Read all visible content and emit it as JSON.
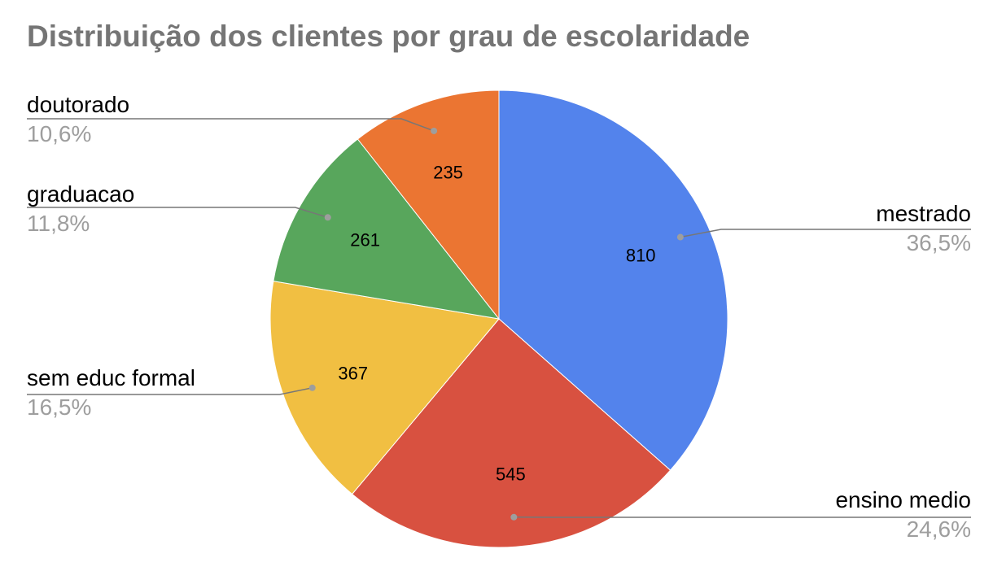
{
  "chart_data": {
    "type": "pie",
    "title": "Distribuição dos clientes por grau de escolaridade",
    "slices": [
      {
        "label": "mestrado",
        "value": 810,
        "percent": "36,5%",
        "color": "#5383EC"
      },
      {
        "label": "ensino medio",
        "value": 545,
        "percent": "24,6%",
        "color": "#D85140"
      },
      {
        "label": "sem educ formal",
        "value": 367,
        "percent": "16,5%",
        "color": "#F1BF42"
      },
      {
        "label": "graduacao",
        "value": 261,
        "percent": "11,8%",
        "color": "#58A65C"
      },
      {
        "label": "doutorado",
        "value": 235,
        "percent": "10,6%",
        "color": "#EB7532"
      }
    ],
    "legend": "none",
    "start_angle": "top, clockwise"
  }
}
